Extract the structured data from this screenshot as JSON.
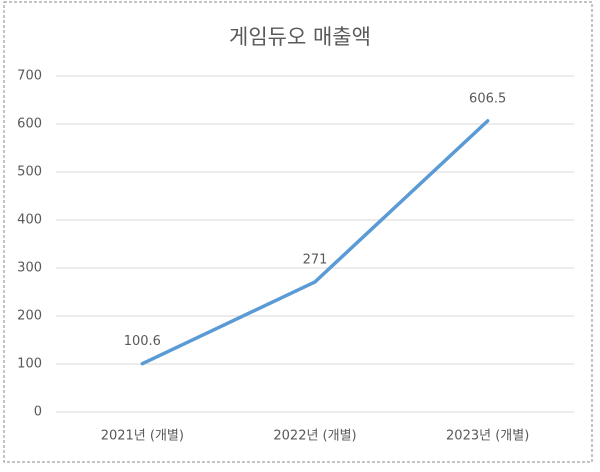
{
  "chart_data": {
    "type": "line",
    "title": "게임듀오 매출액",
    "categories": [
      "2021년 (개별)",
      "2022년 (개별)",
      "2023년 (개별)"
    ],
    "series": [
      {
        "name": "매출액",
        "color": "#5b9bd5",
        "values": [
          100.6,
          271,
          606.5
        ]
      }
    ],
    "ylim": [
      0,
      700
    ],
    "yticks": [
      0,
      100,
      200,
      300,
      400,
      500,
      600,
      700
    ],
    "grid": true
  }
}
